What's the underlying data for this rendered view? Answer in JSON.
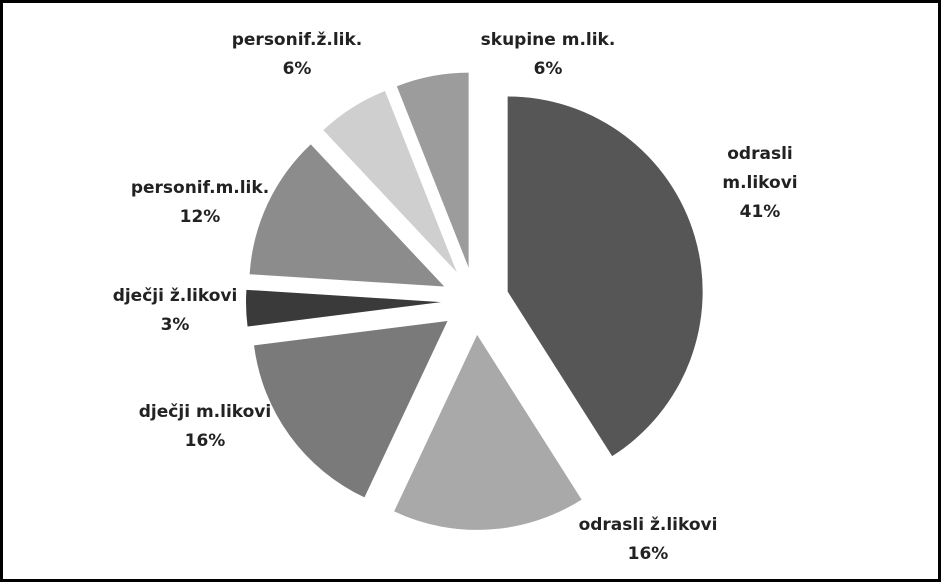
{
  "chart_data": {
    "type": "pie",
    "categories": [
      "odrasli m.likovi",
      "odrasli ž.likovi",
      "dječji m.likovi",
      "dječji ž.likovi",
      "personif.m.lik.",
      "personif.ž.lik.",
      "skupine m.lik."
    ],
    "values": [
      41,
      16,
      16,
      3,
      12,
      6,
      6
    ],
    "value_labels": [
      "41%",
      "16%",
      "16%",
      "3%",
      "12%",
      "6%",
      "6%"
    ],
    "colors": [
      "#565656",
      "#a9a9a9",
      "#7a7a7a",
      "#3a3a3a",
      "#8c8c8c",
      "#cfcfcf",
      "#9c9c9c"
    ]
  }
}
